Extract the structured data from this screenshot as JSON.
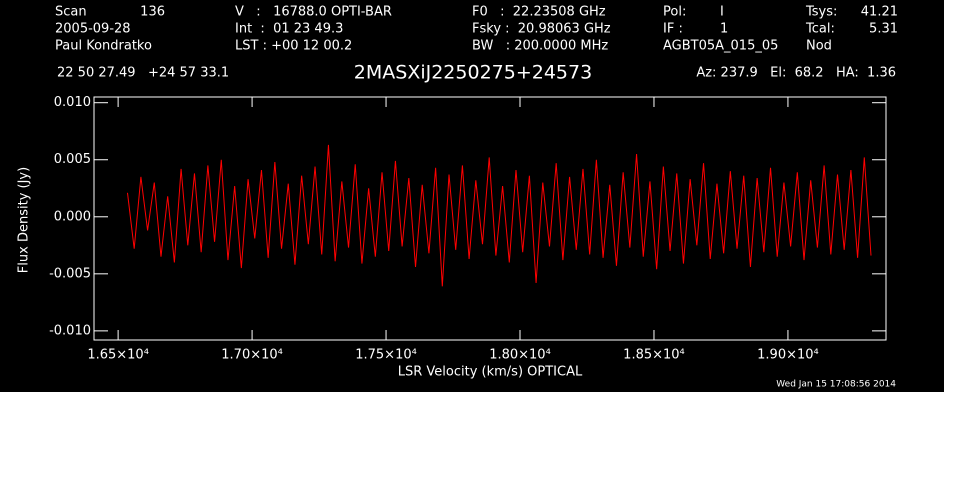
{
  "chart_data": {
    "type": "line",
    "title": "2MASXiJ2250275+24573",
    "header": [
      "Scan",
      "136",
      "2005-09-28",
      "Paul Kondratko",
      "V   :   16788.0 OPTI-BAR",
      "Int  :  01 23 49.3",
      "LST : +00 12 00.2",
      "F0   :  22.23508 GHz",
      "Fsky :  20.98063 GHz",
      "BW   : 200.0000 MHz",
      "Pol:",
      "I",
      "IF :",
      "1",
      "AGBT05A_015_05",
      "Tsys:",
      "41.21",
      "Tcal:",
      "5.31",
      "Nod",
      "22 50 27.49   +24 57 33.1",
      "Az: 237.9   El:  68.2   HA:  1.36"
    ],
    "timestamp": "Wed Jan 15 17:08:56 2014",
    "xlabel": "LSR Velocity (km/s) OPTICAL",
    "ylabel": "Flux Density (Jy)",
    "color": "#ff0000",
    "xlim": [
      16410,
      19366
    ],
    "ylim": [
      -0.0108,
      0.0105
    ],
    "xticks": [
      {
        "value": 16500,
        "label": "1.65×10⁴"
      },
      {
        "value": 17000,
        "label": "1.70×10⁴"
      },
      {
        "value": 17500,
        "label": "1.75×10⁴"
      },
      {
        "value": 18000,
        "label": "1.80×10⁴"
      },
      {
        "value": 18500,
        "label": "1.85×10⁴"
      },
      {
        "value": 19000,
        "label": "1.90×10⁴"
      }
    ],
    "yticks": [
      {
        "value": 0.01,
        "label": "0.010"
      },
      0.005,
      {
        "value": 0,
        "label": "0.000"
      },
      -0.005,
      {
        "value": -0.01,
        "label": "-0.010"
      }
    ],
    "x": [
      16535,
      16560,
      16585,
      16610,
      16635,
      16660,
      16685,
      16710,
      16735,
      16760,
      16785,
      16810,
      16835,
      16860,
      16885,
      16910,
      16935,
      16960,
      16985,
      17010,
      17035,
      17060,
      17085,
      17110,
      17135,
      17160,
      17185,
      17210,
      17235,
      17260,
      17285,
      17310,
      17335,
      17360,
      17385,
      17410,
      17435,
      17460,
      17485,
      17510,
      17535,
      17560,
      17585,
      17610,
      17635,
      17660,
      17685,
      17710,
      17735,
      17760,
      17785,
      17810,
      17835,
      17860,
      17885,
      17910,
      17935,
      17960,
      17985,
      18010,
      18035,
      18060,
      18085,
      18110,
      18135,
      18160,
      18185,
      18210,
      18235,
      18260,
      18285,
      18310,
      18335,
      18360,
      18385,
      18410,
      18435,
      18460,
      18485,
      18510,
      18535,
      18560,
      18585,
      18610,
      18635,
      18660,
      18685,
      18710,
      18735,
      18760,
      18785,
      18810,
      18835,
      18860,
      18885,
      18910,
      18935,
      18960,
      18985,
      19010,
      19035,
      19060,
      19085,
      19110,
      19135,
      19160,
      19185,
      19210,
      19235,
      19260,
      19285,
      19310
    ],
    "values": [
      0.0021,
      -0.0028,
      0.0035,
      -0.0012,
      0.003,
      -0.0035,
      0.0018,
      -0.004,
      0.0042,
      -0.0025,
      0.0038,
      -0.0031,
      0.0045,
      -0.0022,
      0.005,
      -0.0038,
      0.0027,
      -0.0045,
      0.0033,
      -0.0019,
      0.0041,
      -0.0036,
      0.0048,
      -0.0028,
      0.0029,
      -0.0042,
      0.0036,
      -0.0024,
      0.0044,
      -0.0033,
      0.0063,
      -0.0039,
      0.0031,
      -0.0027,
      0.0046,
      -0.0041,
      0.0025,
      -0.0035,
      0.0039,
      -0.003,
      0.0049,
      -0.0026,
      0.0034,
      -0.0044,
      0.0028,
      -0.0032,
      0.0043,
      -0.0061,
      0.0037,
      -0.0029,
      0.0045,
      -0.0037,
      0.0032,
      -0.0024,
      0.0052,
      -0.0034,
      0.0027,
      -0.004,
      0.0041,
      -0.0031,
      0.0036,
      -0.0058,
      0.003,
      -0.0026,
      0.0047,
      -0.0038,
      0.0035,
      -0.0029,
      0.0042,
      -0.0033,
      0.005,
      -0.0036,
      0.0028,
      -0.0043,
      0.0039,
      -0.0027,
      0.0055,
      -0.0035,
      0.0031,
      -0.0046,
      0.0044,
      -0.003,
      0.0038,
      -0.0041,
      0.0033,
      -0.0025,
      0.0047,
      -0.0037,
      0.0029,
      -0.0032,
      0.004,
      -0.0028,
      0.0036,
      -0.0044,
      0.0034,
      -0.0031,
      0.0043,
      -0.0035,
      0.003,
      -0.0026,
      0.0039,
      -0.0038,
      0.0032,
      -0.0027,
      0.0045,
      -0.0033,
      0.0037,
      -0.0029,
      0.0041,
      -0.0036,
      0.0052,
      -0.0034
    ]
  }
}
